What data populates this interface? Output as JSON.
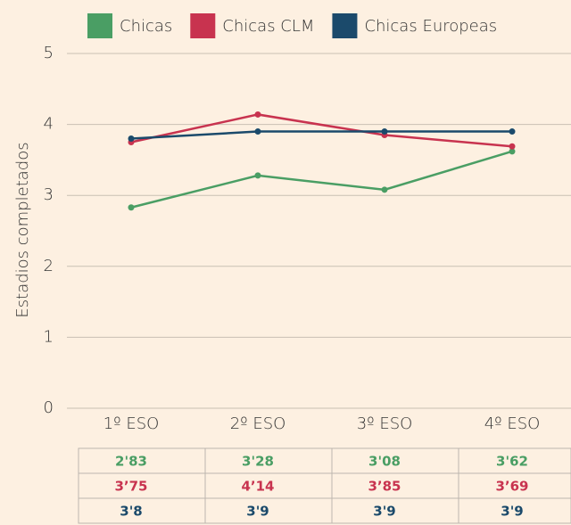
{
  "chart_data": {
    "type": "line",
    "y_label": "Estadios completados",
    "categories": [
      "1º ESO",
      "2º ESO",
      "3º ESO",
      "4º ESO"
    ],
    "series": [
      {
        "name": "Chicas",
        "color": "#4a9e64",
        "values": [
          2.83,
          3.28,
          3.08,
          3.62
        ],
        "value_labels": [
          "2'83",
          "3'28",
          "3'08",
          "3'62"
        ]
      },
      {
        "name": "Chicas CLM",
        "color": "#c8334f",
        "values": [
          3.75,
          4.14,
          3.85,
          3.69
        ],
        "value_labels": [
          "3’75",
          "4’14",
          "3’85",
          "3’69"
        ]
      },
      {
        "name": "Chicas Europeas",
        "color": "#1b4a6b",
        "values": [
          3.8,
          3.9,
          3.9,
          3.9
        ],
        "value_labels": [
          "3'8",
          "3'9",
          "3'9",
          "3'9"
        ]
      }
    ],
    "ylim": [
      0,
      5
    ],
    "yticks": [
      0,
      1,
      2,
      3,
      4,
      5
    ],
    "grid": true,
    "legend": "top"
  }
}
